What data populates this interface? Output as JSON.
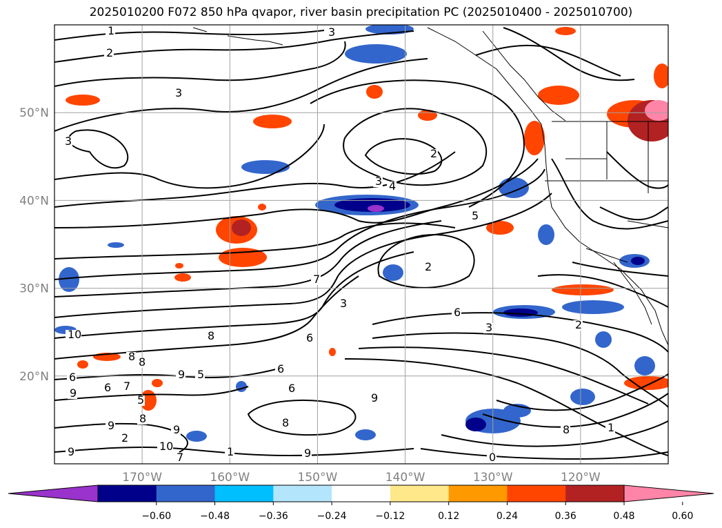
{
  "title": "2025010200 F072 850 hPa qvapor, river basin precipitation PC (2025010400 - 2025010700)",
  "map": {
    "lon_range": [
      -180,
      -110
    ],
    "lat_range": [
      10,
      60
    ],
    "gridlines": true,
    "lat_labels": [
      "20°N",
      "30°N",
      "40°N",
      "50°N"
    ],
    "lon_labels": [
      "170°W",
      "160°W",
      "150°W",
      "140°W",
      "130°W",
      "120°W"
    ],
    "contour_labels": [
      "1",
      "2",
      "3",
      "3",
      "3",
      "3",
      "4",
      "2",
      "5",
      "2",
      "3",
      "7",
      "6",
      "3",
      "2",
      "10",
      "8",
      "8",
      "8",
      "6",
      "6",
      "6",
      "5",
      "6",
      "9",
      "7",
      "5",
      "9",
      "6",
      "9",
      "8",
      "9",
      "8",
      "9",
      "10",
      "9",
      "9",
      "7",
      "8",
      "1",
      "0",
      "1",
      "2"
    ]
  },
  "colorbar": {
    "ticks": [
      "−0.60",
      "−0.48",
      "−0.36",
      "−0.24",
      "−0.12",
      "0.12",
      "0.24",
      "0.36",
      "0.48",
      "0.60"
    ],
    "colors": [
      "#9933cc",
      "#00008b",
      "#3366cc",
      "#00bfff",
      "#b3e5fc",
      "#ffffff",
      "#ffe88a",
      "#ff9900",
      "#ff4500",
      "#b22222",
      "#ff85a8"
    ]
  }
}
